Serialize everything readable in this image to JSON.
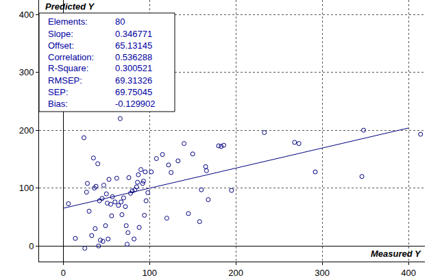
{
  "chart_data": {
    "type": "scatter",
    "x_label": "Measured Y",
    "y_label": "Predicted Y",
    "x": [
      6,
      14,
      24,
      25,
      27,
      28,
      30,
      33,
      35,
      36,
      37,
      38,
      40,
      41,
      42,
      43,
      45,
      46,
      47,
      49,
      50,
      51,
      52,
      53,
      55,
      56,
      57,
      60,
      62,
      64,
      66,
      67,
      68,
      70,
      72,
      73,
      74,
      75,
      76,
      78,
      80,
      82,
      83,
      85,
      86,
      87,
      88,
      90,
      92,
      93,
      94,
      95,
      96,
      98,
      102,
      108,
      115,
      120,
      122,
      125,
      133,
      140,
      145,
      150,
      158,
      160,
      165,
      166,
      168,
      180,
      183,
      186,
      195,
      233,
      268,
      273,
      292,
      346,
      348,
      414
    ],
    "values": [
      73,
      13,
      187,
      -4,
      93,
      108,
      60,
      18,
      152,
      100,
      30,
      103,
      142,
      0,
      78,
      10,
      82,
      8,
      105,
      35,
      90,
      74,
      12,
      115,
      72,
      52,
      85,
      76,
      117,
      70,
      220,
      76,
      54,
      83,
      68,
      35,
      3,
      23,
      118,
      91,
      95,
      12,
      97,
      102,
      110,
      123,
      32,
      132,
      108,
      112,
      53,
      128,
      78,
      92,
      128,
      151,
      158,
      48,
      140,
      127,
      147,
      177,
      56,
      159,
      42,
      97,
      137,
      130,
      80,
      173,
      172,
      174,
      96,
      196,
      179,
      177,
      128,
      120,
      200,
      193
    ],
    "color": "#000080",
    "marker": "circle-open",
    "xlim": [
      -28,
      419
    ],
    "ylim": [
      -27,
      425
    ],
    "xticks": [
      0,
      100,
      200,
      300,
      400
    ],
    "yticks": [
      0,
      100,
      200,
      300,
      400
    ],
    "grid": true,
    "stats": [
      {
        "label": "Elements:",
        "value": 80
      },
      {
        "label": "Slope:",
        "value": 0.346771
      },
      {
        "label": "Offset:",
        "value": 65.13145
      },
      {
        "label": "Correlation:",
        "value": 0.536288
      },
      {
        "label": "R-Square:",
        "value": 0.300521
      },
      {
        "label": "RMSEP:",
        "value": 69.31326
      },
      {
        "label": "SEP:",
        "value": 69.75045
      },
      {
        "label": "Bias:",
        "value": -0.129902
      }
    ]
  }
}
